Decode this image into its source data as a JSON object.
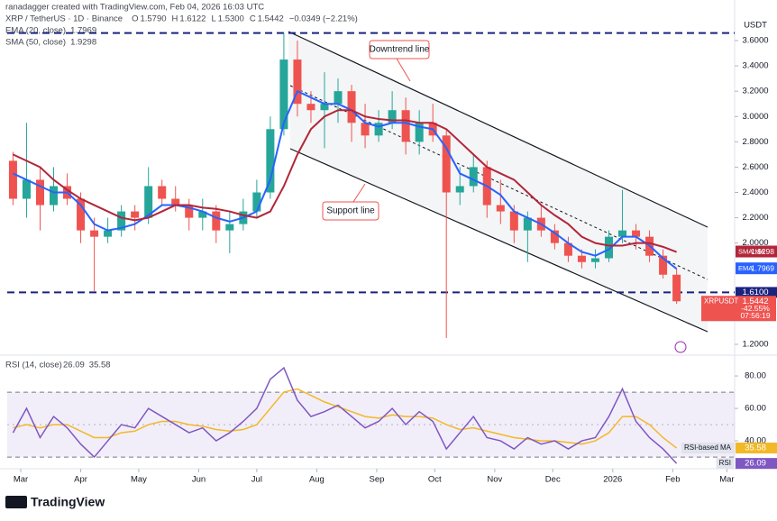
{
  "header": {
    "attribution": "ranadagger created with TradingView.com, Feb 04, 2026 16:03 UTC",
    "symbol": "XRP / TetherUS · 1D · Binance",
    "ohlc": [
      {
        "key": "O",
        "value": "1.5790"
      },
      {
        "key": "H",
        "value": "1.6122"
      },
      {
        "key": "L",
        "value": "1.5300"
      },
      {
        "key": "C",
        "value": "1.5442"
      }
    ],
    "change": "−0.0349 (−2.21%)",
    "indicators": [
      {
        "name": "EMA (20, close)",
        "value": "1.7969"
      },
      {
        "name": "SMA (50, close)",
        "value": "1.9298"
      }
    ],
    "currency": "USDT"
  },
  "chart_data": [
    {
      "type": "candlestick",
      "x": [
        3,
        10,
        17,
        24,
        31,
        38,
        45,
        52,
        59,
        66,
        73,
        80,
        87,
        94,
        101,
        108,
        115,
        122,
        129,
        136,
        143,
        150,
        157,
        164,
        171,
        178,
        185,
        192,
        199,
        206,
        213,
        220,
        227,
        234,
        241,
        248,
        255,
        262,
        269,
        276,
        283,
        290,
        297,
        304,
        311,
        318,
        325,
        332,
        339,
        346
      ],
      "open": [
        2.65,
        2.35,
        2.5,
        2.3,
        2.45,
        2.35,
        2.1,
        2.05,
        2.1,
        2.25,
        2.2,
        2.45,
        2.35,
        2.3,
        2.2,
        2.25,
        2.1,
        2.15,
        2.25,
        2.4,
        2.9,
        3.45,
        3.1,
        3.05,
        3.1,
        3.2,
        2.95,
        2.85,
        2.95,
        3.05,
        2.8,
        2.95,
        2.85,
        2.4,
        2.45,
        2.6,
        2.3,
        2.25,
        2.1,
        2.2,
        2.1,
        2.0,
        1.9,
        1.85,
        1.88,
        2.05,
        2.1,
        2.05,
        1.9,
        1.75
      ],
      "high": [
        2.72,
        2.95,
        2.6,
        2.6,
        2.55,
        2.4,
        2.2,
        2.2,
        2.3,
        2.3,
        2.6,
        2.5,
        2.45,
        2.35,
        2.35,
        2.3,
        2.25,
        2.35,
        2.5,
        3.0,
        3.66,
        3.6,
        3.2,
        3.35,
        3.3,
        3.25,
        3.1,
        3.05,
        3.2,
        3.15,
        3.05,
        3.1,
        2.9,
        2.6,
        2.7,
        2.65,
        2.5,
        2.3,
        2.25,
        2.3,
        2.15,
        2.05,
        1.95,
        1.95,
        2.1,
        2.42,
        2.15,
        2.1,
        1.95,
        1.8
      ],
      "low": [
        2.3,
        2.2,
        2.1,
        2.25,
        2.3,
        2.0,
        1.62,
        2.0,
        2.05,
        2.1,
        2.15,
        2.3,
        2.25,
        2.1,
        2.1,
        2.0,
        1.92,
        2.1,
        2.2,
        2.35,
        2.85,
        3.0,
        2.95,
        2.75,
        2.95,
        2.8,
        2.75,
        2.8,
        2.9,
        2.7,
        2.7,
        2.8,
        1.25,
        2.3,
        2.4,
        2.2,
        2.15,
        2.0,
        1.85,
        2.05,
        1.95,
        1.85,
        1.8,
        1.8,
        1.85,
        2.0,
        1.95,
        1.85,
        1.72,
        1.52
      ],
      "close": [
        2.35,
        2.5,
        2.3,
        2.45,
        2.35,
        2.1,
        2.05,
        2.1,
        2.25,
        2.2,
        2.45,
        2.35,
        2.3,
        2.2,
        2.25,
        2.1,
        2.15,
        2.25,
        2.4,
        2.9,
        3.45,
        3.1,
        3.05,
        3.1,
        3.2,
        2.95,
        2.85,
        2.95,
        3.05,
        2.8,
        2.95,
        2.85,
        2.4,
        2.45,
        2.6,
        2.3,
        2.25,
        2.1,
        2.2,
        2.1,
        2.0,
        1.9,
        1.85,
        1.88,
        2.05,
        2.1,
        2.05,
        1.9,
        1.75,
        1.54
      ],
      "up_color": "#26a69a",
      "down_color": "#ef5350",
      "series": [
        {
          "name": "EMA",
          "color": "#2962ff",
          "values": [
            2.55,
            2.5,
            2.45,
            2.4,
            2.4,
            2.3,
            2.15,
            2.1,
            2.12,
            2.15,
            2.22,
            2.3,
            2.3,
            2.28,
            2.25,
            2.2,
            2.17,
            2.2,
            2.25,
            2.5,
            2.95,
            3.2,
            3.15,
            3.1,
            3.1,
            3.05,
            2.95,
            2.92,
            2.95,
            2.95,
            2.92,
            2.9,
            2.75,
            2.55,
            2.5,
            2.45,
            2.38,
            2.25,
            2.2,
            2.15,
            2.08,
            2.0,
            1.93,
            1.9,
            1.95,
            2.05,
            2.05,
            1.98,
            1.88,
            1.7969
          ],
          "label": "1.7969"
        },
        {
          "name": "SMA:MA",
          "color": "#b2263a",
          "values": [
            2.7,
            2.65,
            2.6,
            2.5,
            2.42,
            2.35,
            2.3,
            2.25,
            2.2,
            2.18,
            2.2,
            2.25,
            2.3,
            2.3,
            2.28,
            2.27,
            2.25,
            2.22,
            2.2,
            2.25,
            2.45,
            2.7,
            2.9,
            3.0,
            3.05,
            3.05,
            3.0,
            2.98,
            2.97,
            2.97,
            2.95,
            2.95,
            2.9,
            2.8,
            2.7,
            2.6,
            2.55,
            2.5,
            2.4,
            2.3,
            2.22,
            2.15,
            2.05,
            2.0,
            1.98,
            1.98,
            2.0,
            2.0,
            1.97,
            1.9298
          ],
          "label": "1.9298"
        }
      ],
      "levels": [
        {
          "value": 3.66
        },
        {
          "value": 1.61,
          "label": "1.6100"
        }
      ],
      "level_color": "#1a237e",
      "last_label": {
        "symbol": "XRPUSDT",
        "price": "1.5442",
        "change": "-42.55%",
        "countdown": "07:56:19"
      },
      "annotations": [
        "Downtrend line",
        "Support line"
      ],
      "xlim": [
        0,
        376
      ],
      "ylim": [
        1.143,
        3.778
      ],
      "yticks": [
        {
          "value": 3.6,
          "label": "3.6000"
        },
        {
          "value": 3.4,
          "label": "3.4000"
        },
        {
          "value": 3.2,
          "label": "3.2000"
        },
        {
          "value": 3.0,
          "label": "3.0000"
        },
        {
          "value": 2.8,
          "label": "2.8000"
        },
        {
          "value": 2.6,
          "label": "2.6000"
        },
        {
          "value": 2.4,
          "label": "2.4000"
        },
        {
          "value": 2.2,
          "label": "2.2000"
        },
        {
          "value": 2.0,
          "label": "2.0000"
        },
        {
          "value": 1.2,
          "label": "1.2000"
        }
      ],
      "grid": false
    },
    {
      "type": "line",
      "title": "RSI (14, close)",
      "x": [
        3,
        10,
        17,
        24,
        31,
        38,
        45,
        52,
        59,
        66,
        73,
        80,
        87,
        94,
        101,
        108,
        115,
        122,
        129,
        136,
        143,
        150,
        157,
        164,
        171,
        178,
        185,
        192,
        199,
        206,
        213,
        220,
        227,
        234,
        241,
        248,
        255,
        262,
        269,
        276,
        283,
        290,
        297,
        304,
        311,
        318,
        325,
        332,
        339,
        346
      ],
      "series": [
        {
          "name": "RSI",
          "color": "#7e57c2",
          "values": [
            45,
            60,
            42,
            55,
            48,
            38,
            30,
            40,
            50,
            48,
            60,
            55,
            50,
            45,
            48,
            40,
            45,
            52,
            60,
            78,
            85,
            65,
            55,
            58,
            62,
            55,
            48,
            52,
            60,
            50,
            58,
            52,
            35,
            45,
            55,
            42,
            40,
            35,
            42,
            38,
            40,
            35,
            40,
            42,
            55,
            72,
            52,
            42,
            35,
            26.09
          ],
          "label": "26.09"
        },
        {
          "name": "RSI-based MA",
          "color": "#f2b826",
          "values": [
            48,
            50,
            48,
            50,
            50,
            46,
            42,
            42,
            45,
            46,
            50,
            52,
            52,
            50,
            49,
            47,
            46,
            47,
            50,
            60,
            70,
            72,
            68,
            64,
            61,
            58,
            55,
            54,
            56,
            55,
            55,
            54,
            50,
            47,
            48,
            46,
            44,
            42,
            41,
            40,
            40,
            39,
            38,
            40,
            45,
            55,
            55,
            50,
            42,
            35.58
          ],
          "label": "35.58"
        }
      ],
      "band": [
        30,
        70
      ],
      "midline": 50,
      "xlim": [
        0,
        376
      ],
      "ylim": [
        25.6,
        90.6
      ],
      "yticks": [
        {
          "value": 80,
          "label": "80.00"
        },
        {
          "value": 60,
          "label": "60.00"
        },
        {
          "value": 40,
          "label": "40.00"
        }
      ],
      "xticks": [
        {
          "value": 7,
          "label": "Mar"
        },
        {
          "value": 38,
          "label": "Apr"
        },
        {
          "value": 68,
          "label": "May"
        },
        {
          "value": 99,
          "label": "Jun"
        },
        {
          "value": 129,
          "label": "Jul"
        },
        {
          "value": 160,
          "label": "Aug"
        },
        {
          "value": 191,
          "label": "Sep"
        },
        {
          "value": 221,
          "label": "Oct"
        },
        {
          "value": 252,
          "label": "Nov"
        },
        {
          "value": 282,
          "label": "Dec"
        },
        {
          "value": 313,
          "label": "2026"
        },
        {
          "value": 344,
          "label": "Feb"
        },
        {
          "value": 372,
          "label": "Mar"
        }
      ],
      "grid": false
    }
  ],
  "footer": {
    "logo": "TradingView"
  }
}
